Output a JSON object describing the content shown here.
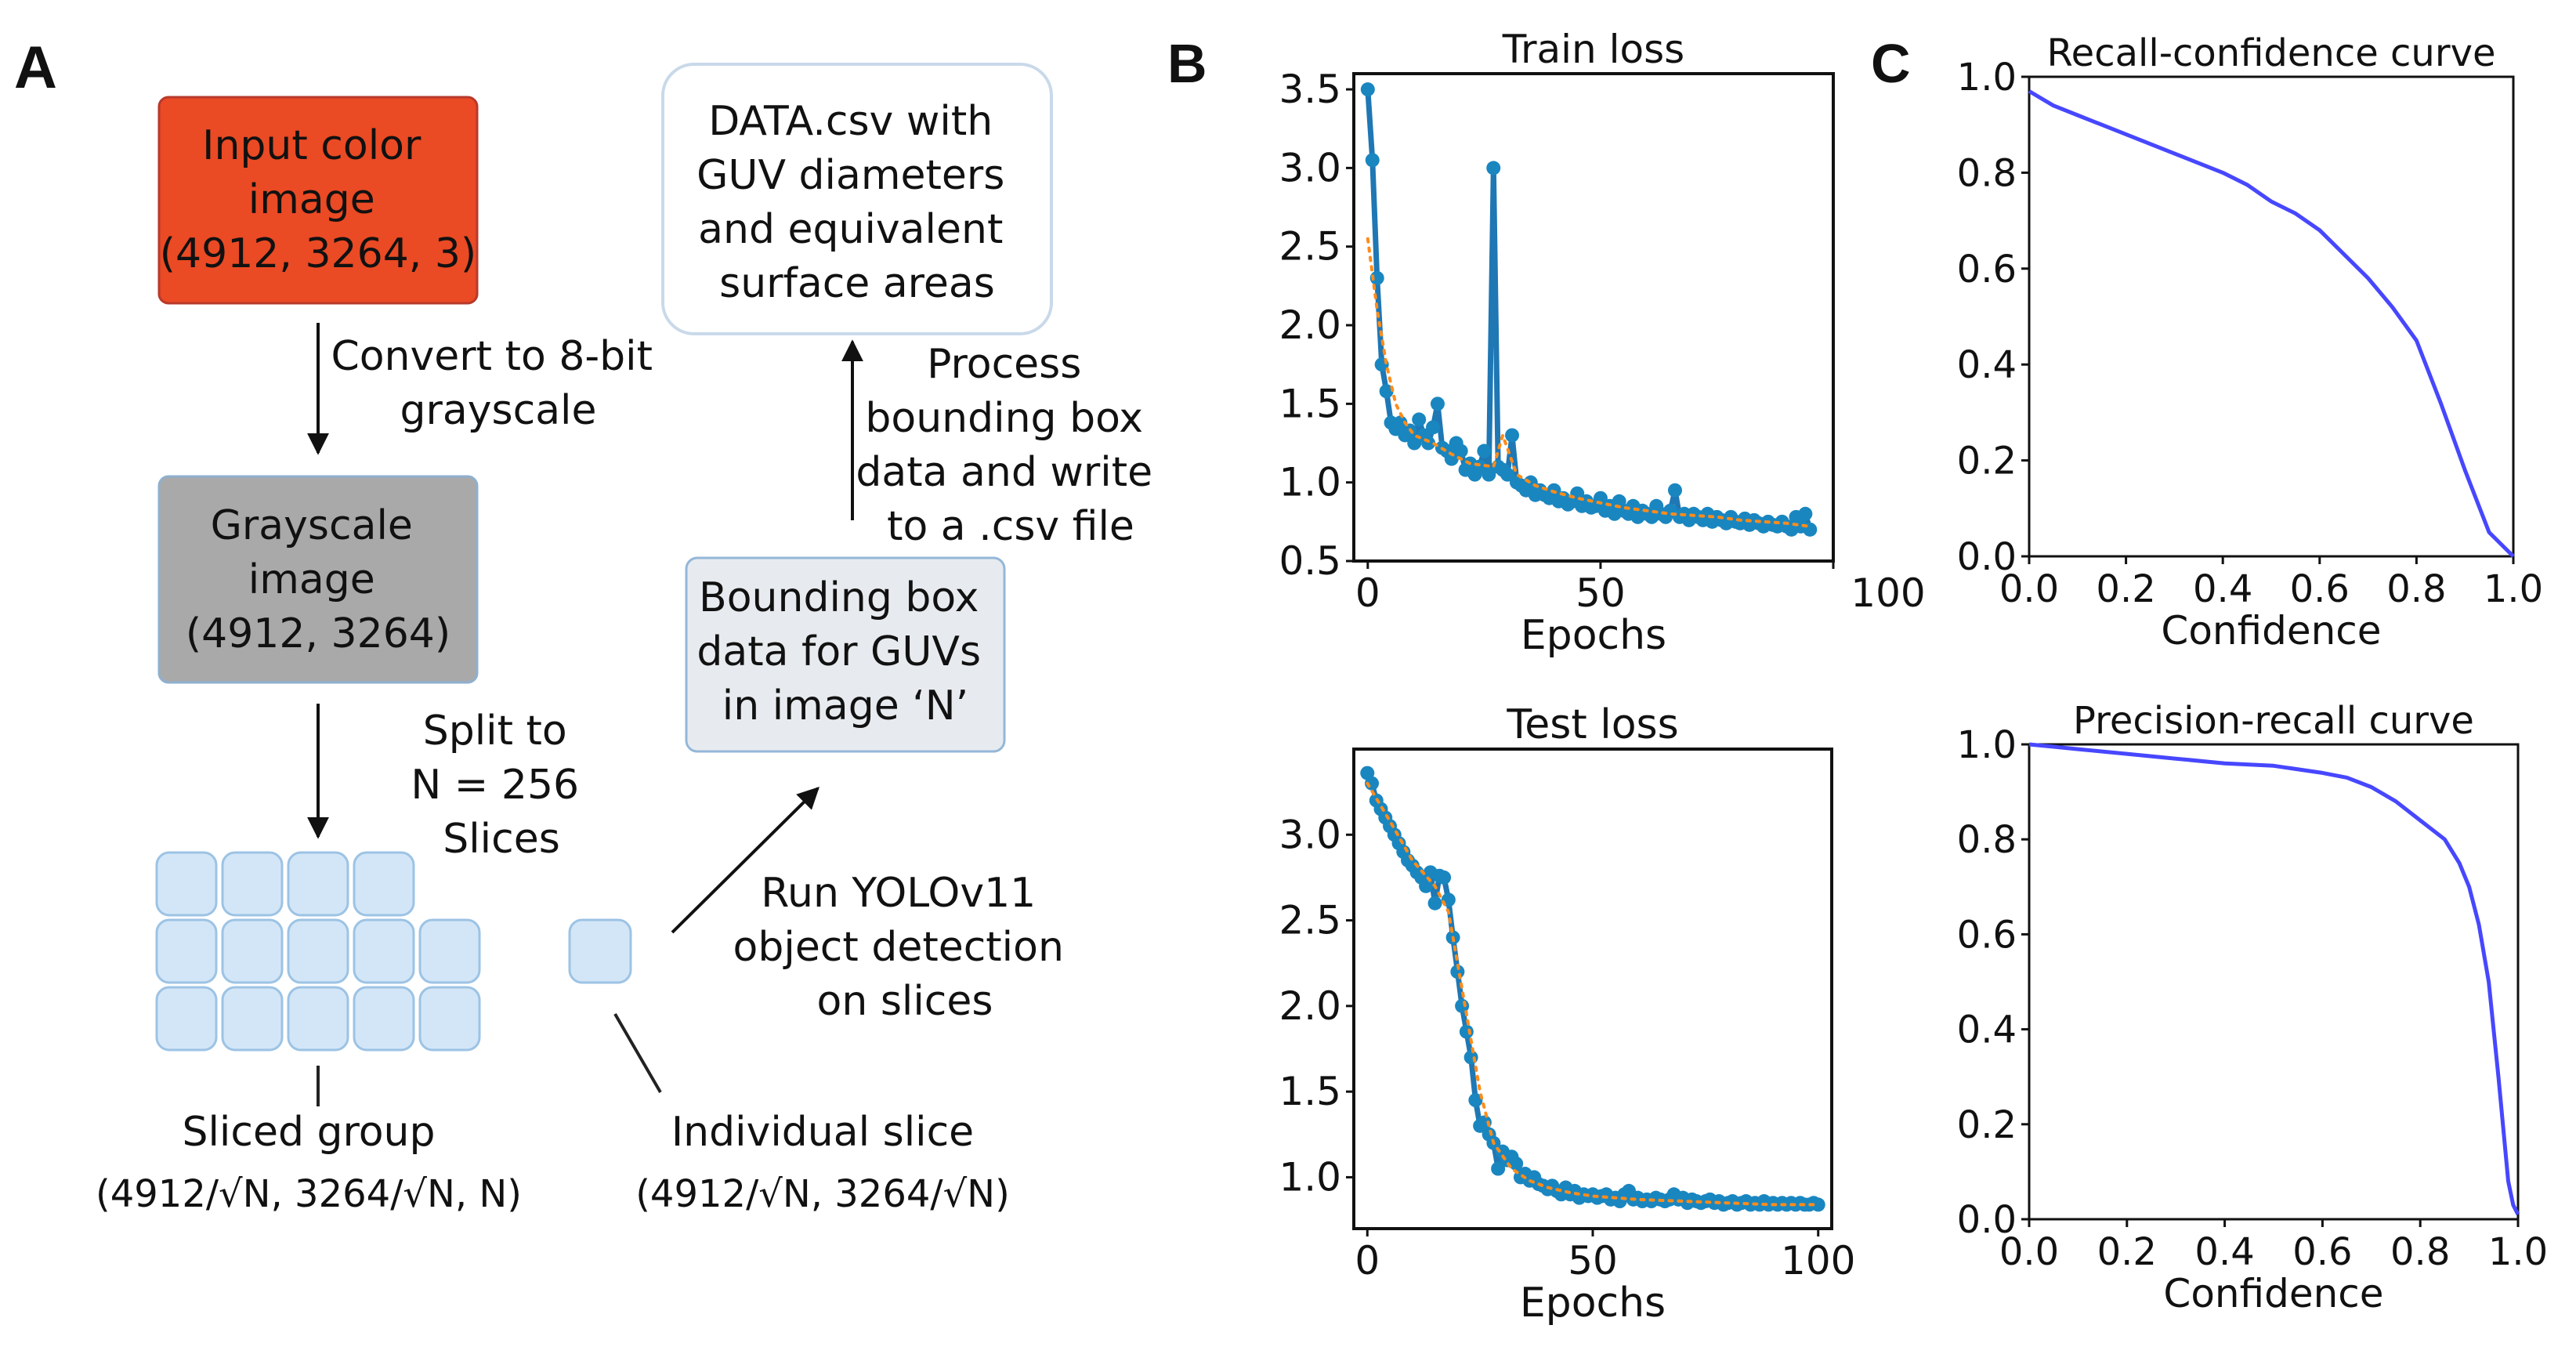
{
  "panel_labels": {
    "a": "A",
    "b": "B",
    "c": "C"
  },
  "colors": {
    "input_box": "#ea4a24",
    "grayscale_box": "#a9a9a9",
    "bbox_box": "#e7ebef",
    "slice_fill": "#d3e6f7",
    "slice_stroke": "#9cc3e4",
    "loss_line": "#1f77b4",
    "loss_dots": "#1a86c0",
    "loss_trend": "#ff8c1a",
    "curve": "#4747ff"
  },
  "diagram": {
    "input_box": [
      "Input color",
      "image",
      "(4912, 3264, 3)"
    ],
    "convert_step": [
      "Convert to 8-bit",
      "grayscale"
    ],
    "grayscale_box": [
      "Grayscale",
      "image",
      "(4912, 3264)"
    ],
    "split_step": [
      "Split to",
      "N = 256",
      "Slices"
    ],
    "sliced_group": {
      "title": "Sliced group",
      "size": "(4912/√N, 3264/√N, N)"
    },
    "individual_slice": {
      "title": "Individual slice",
      "size": "(4912/√N, 3264/√N)"
    },
    "run_step": [
      "Run YOLOv11",
      "object detection",
      "on slices"
    ],
    "bbox_box": [
      "Bounding box",
      "data for GUVs",
      "in image ‘N’"
    ],
    "process_step": [
      "Process",
      "bounding box",
      "data and write",
      "to a .csv file"
    ],
    "data_box": [
      "DATA.csv with",
      "GUV diameters",
      "and equivalent",
      "surface areas"
    ]
  },
  "chart_data": [
    {
      "type": "line",
      "title": "Train loss",
      "xlabel": "Epochs",
      "ylabel": "",
      "xlim": [
        -3,
        100
      ],
      "ylim": [
        0.5,
        3.6
      ],
      "xticks": [
        "0",
        "50",
        "100"
      ],
      "yticks": [
        "0.5",
        "1.0",
        "1.5",
        "2.0",
        "2.5",
        "3.0",
        "3.5"
      ],
      "series": [
        {
          "name": "loss",
          "x": [
            0,
            1,
            2,
            3,
            4,
            5,
            6,
            7,
            8,
            9,
            10,
            11,
            12,
            13,
            14,
            15,
            16,
            17,
            18,
            19,
            20,
            21,
            22,
            23,
            24,
            25,
            26,
            27,
            28,
            29,
            30,
            31,
            32,
            33,
            34,
            35,
            36,
            37,
            38,
            39,
            40,
            41,
            42,
            43,
            44,
            45,
            46,
            47,
            48,
            49,
            50,
            51,
            52,
            53,
            54,
            55,
            56,
            57,
            58,
            59,
            60,
            61,
            62,
            63,
            64,
            65,
            66,
            67,
            68,
            69,
            70,
            71,
            72,
            73,
            74,
            75,
            76,
            77,
            78,
            79,
            80,
            81,
            82,
            83,
            84,
            85,
            86,
            87,
            88,
            89,
            90,
            91,
            92,
            93,
            94,
            95
          ],
          "values": [
            3.5,
            3.05,
            2.3,
            1.75,
            1.58,
            1.38,
            1.34,
            1.38,
            1.3,
            1.33,
            1.25,
            1.4,
            1.3,
            1.25,
            1.35,
            1.5,
            1.22,
            1.2,
            1.15,
            1.25,
            1.2,
            1.08,
            1.12,
            1.05,
            1.1,
            1.2,
            1.05,
            3.0,
            1.1,
            1.08,
            1.05,
            1.3,
            1.0,
            0.98,
            0.95,
            1.0,
            0.92,
            0.95,
            0.92,
            0.9,
            0.95,
            0.88,
            0.9,
            0.86,
            0.88,
            0.93,
            0.85,
            0.88,
            0.84,
            0.85,
            0.9,
            0.82,
            0.85,
            0.8,
            0.88,
            0.82,
            0.8,
            0.85,
            0.78,
            0.82,
            0.8,
            0.78,
            0.85,
            0.8,
            0.78,
            0.82,
            0.95,
            0.78,
            0.8,
            0.76,
            0.8,
            0.78,
            0.76,
            0.8,
            0.75,
            0.78,
            0.76,
            0.74,
            0.78,
            0.75,
            0.74,
            0.77,
            0.73,
            0.76,
            0.74,
            0.72,
            0.75,
            0.73,
            0.72,
            0.75,
            0.72,
            0.7,
            0.78,
            0.72,
            0.8,
            0.7
          ]
        },
        {
          "name": "trend",
          "x": [
            0,
            2,
            4,
            6,
            8,
            10,
            14,
            18,
            22,
            27,
            29,
            32,
            36,
            40,
            45,
            50,
            55,
            60,
            65,
            70,
            75,
            80,
            85,
            90,
            95
          ],
          "values": [
            2.55,
            2.1,
            1.75,
            1.5,
            1.38,
            1.3,
            1.25,
            1.18,
            1.12,
            1.1,
            1.3,
            1.05,
            0.98,
            0.94,
            0.9,
            0.87,
            0.84,
            0.82,
            0.8,
            0.79,
            0.78,
            0.76,
            0.75,
            0.74,
            0.72
          ]
        }
      ]
    },
    {
      "type": "line",
      "title": "Test loss",
      "xlabel": "Epochs",
      "ylabel": "",
      "xlim": [
        -3,
        103
      ],
      "ylim": [
        0.7,
        3.5
      ],
      "xticks": [
        "0",
        "50",
        "100"
      ],
      "yticks": [
        "1.0",
        "1.5",
        "2.0",
        "2.5",
        "3.0"
      ],
      "series": [
        {
          "name": "loss",
          "x": [
            0,
            1,
            2,
            3,
            4,
            5,
            6,
            7,
            8,
            9,
            10,
            11,
            12,
            13,
            14,
            15,
            16,
            17,
            18,
            19,
            20,
            21,
            22,
            23,
            24,
            25,
            26,
            27,
            28,
            29,
            30,
            31,
            32,
            33,
            34,
            35,
            36,
            37,
            38,
            39,
            40,
            41,
            42,
            43,
            44,
            45,
            46,
            47,
            48,
            49,
            50,
            51,
            52,
            53,
            54,
            55,
            56,
            57,
            58,
            59,
            60,
            61,
            62,
            63,
            64,
            65,
            66,
            67,
            68,
            69,
            70,
            71,
            72,
            73,
            74,
            75,
            76,
            77,
            78,
            79,
            80,
            81,
            82,
            83,
            84,
            85,
            86,
            87,
            88,
            89,
            90,
            91,
            92,
            93,
            94,
            95,
            96,
            97,
            98,
            99,
            100
          ],
          "values": [
            3.36,
            3.3,
            3.2,
            3.15,
            3.1,
            3.05,
            3.0,
            2.95,
            2.9,
            2.85,
            2.82,
            2.78,
            2.75,
            2.7,
            2.78,
            2.6,
            2.76,
            2.75,
            2.62,
            2.4,
            2.2,
            2.0,
            1.85,
            1.7,
            1.45,
            1.3,
            1.32,
            1.25,
            1.2,
            1.05,
            1.15,
            1.1,
            1.12,
            1.08,
            1.0,
            1.02,
            0.98,
            1.0,
            0.96,
            0.95,
            0.93,
            0.95,
            0.92,
            0.9,
            0.94,
            0.9,
            0.92,
            0.88,
            0.9,
            0.89,
            0.9,
            0.88,
            0.89,
            0.9,
            0.87,
            0.88,
            0.86,
            0.9,
            0.92,
            0.87,
            0.88,
            0.86,
            0.87,
            0.86,
            0.88,
            0.87,
            0.86,
            0.87,
            0.9,
            0.87,
            0.88,
            0.85,
            0.87,
            0.86,
            0.85,
            0.86,
            0.87,
            0.85,
            0.86,
            0.84,
            0.85,
            0.86,
            0.84,
            0.85,
            0.86,
            0.84,
            0.85,
            0.84,
            0.86,
            0.84,
            0.85,
            0.84,
            0.85,
            0.84,
            0.85,
            0.84,
            0.85,
            0.84,
            0.84,
            0.85,
            0.84
          ]
        },
        {
          "name": "trend",
          "x": [
            0,
            5,
            10,
            15,
            18,
            20,
            22,
            25,
            28,
            32,
            36,
            40,
            45,
            50,
            60,
            70,
            80,
            90,
            100
          ],
          "values": [
            3.3,
            3.08,
            2.85,
            2.7,
            2.55,
            2.25,
            1.95,
            1.5,
            1.2,
            1.05,
            0.98,
            0.94,
            0.91,
            0.89,
            0.87,
            0.86,
            0.85,
            0.84,
            0.84
          ]
        }
      ]
    },
    {
      "type": "line",
      "title": "Recall-confidence curve",
      "xlabel": "Confidence",
      "ylabel": "",
      "xlim": [
        0,
        1
      ],
      "ylim": [
        0,
        1
      ],
      "xticks": [
        "0.0",
        "0.2",
        "0.4",
        "0.6",
        "0.8",
        "1.0"
      ],
      "yticks": [
        "0.0",
        "0.2",
        "0.4",
        "0.6",
        "0.8",
        "1.0"
      ],
      "series": [
        {
          "name": "recall",
          "x": [
            0,
            0.05,
            0.1,
            0.15,
            0.2,
            0.25,
            0.3,
            0.35,
            0.4,
            0.45,
            0.5,
            0.55,
            0.6,
            0.65,
            0.7,
            0.75,
            0.8,
            0.85,
            0.9,
            0.95,
            1.0
          ],
          "values": [
            0.97,
            0.94,
            0.92,
            0.9,
            0.88,
            0.86,
            0.84,
            0.82,
            0.8,
            0.775,
            0.74,
            0.715,
            0.68,
            0.63,
            0.58,
            0.52,
            0.45,
            0.32,
            0.18,
            0.05,
            0.0
          ]
        }
      ]
    },
    {
      "type": "line",
      "title": "Precision-recall curve",
      "xlabel": "Confidence",
      "ylabel": "",
      "xlim": [
        0,
        1
      ],
      "ylim": [
        0,
        1
      ],
      "xticks": [
        "0.0",
        "0.2",
        "0.4",
        "0.6",
        "0.8",
        "1.0"
      ],
      "yticks": [
        "0.0",
        "0.2",
        "0.4",
        "0.6",
        "0.8",
        "1.0"
      ],
      "series": [
        {
          "name": "precision",
          "x": [
            0,
            0.05,
            0.1,
            0.2,
            0.3,
            0.4,
            0.5,
            0.6,
            0.65,
            0.7,
            0.75,
            0.8,
            0.85,
            0.88,
            0.9,
            0.92,
            0.94,
            0.96,
            0.98,
            0.99,
            1.0
          ],
          "values": [
            1.0,
            0.995,
            0.99,
            0.98,
            0.97,
            0.96,
            0.955,
            0.94,
            0.93,
            0.91,
            0.88,
            0.84,
            0.8,
            0.75,
            0.7,
            0.62,
            0.5,
            0.3,
            0.08,
            0.03,
            0.01
          ]
        }
      ]
    }
  ]
}
